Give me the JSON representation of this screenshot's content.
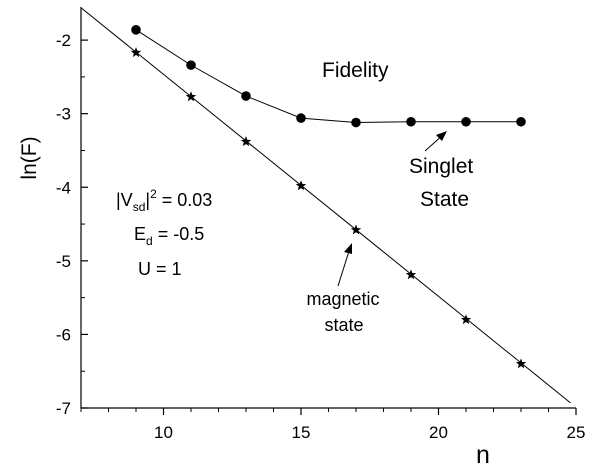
{
  "chart_data": {
    "type": "line",
    "title": "Fidelity",
    "xlabel": "n",
    "ylabel": "ln(F)",
    "xlim": [
      7,
      25
    ],
    "ylim": [
      -7,
      -1.55
    ],
    "xticks": [
      10,
      15,
      20,
      25
    ],
    "xtick_labels": [
      "10",
      "15",
      "20",
      "25"
    ],
    "yticks": [
      -7,
      -6,
      -5,
      -4,
      -3,
      -2
    ],
    "ytick_labels": [
      "-7",
      "-6",
      "-5",
      "-4",
      "-3",
      "-2"
    ],
    "grid": false,
    "series": [
      {
        "name": "Singlet State",
        "marker": "circle",
        "x": [
          9,
          11,
          13,
          15,
          17,
          19,
          21,
          23
        ],
        "y": [
          -1.86,
          -2.34,
          -2.76,
          -3.06,
          -3.12,
          -3.11,
          -3.11,
          -3.11
        ]
      },
      {
        "name": "magnetic state",
        "marker": "star",
        "x": [
          9,
          11,
          13,
          15,
          17,
          19,
          21,
          23
        ],
        "y": [
          -2.17,
          -2.77,
          -3.38,
          -3.98,
          -4.58,
          -5.19,
          -5.8,
          -6.4
        ]
      }
    ],
    "fit_line": {
      "x": [
        7,
        24.8
      ],
      "y": [
        -1.56,
        -6.93
      ]
    },
    "params": {
      "vsd_base": "|V",
      "vsd_sub": "sd",
      "vsd_bar": "|",
      "vsd_sup": "2",
      "vsd_value": " = 0.03",
      "ed_base": "E",
      "ed_sub": "d",
      "ed_value": " = -0.5",
      "u_text": "U = 1"
    },
    "annotations": {
      "singlet_line1": "Singlet",
      "singlet_line2": "State",
      "magnetic_line1": "magnetic",
      "magnetic_line2": "state"
    }
  }
}
